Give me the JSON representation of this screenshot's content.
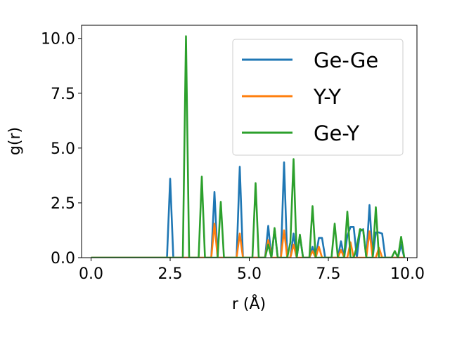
{
  "chart_data": {
    "type": "line",
    "xlabel": "r (Å)",
    "ylabel": "g(r)",
    "xlim": [
      -0.3,
      10.3
    ],
    "ylim": [
      0.0,
      10.6
    ],
    "xticks": [
      "0.0",
      "2.5",
      "5.0",
      "7.5",
      "10.0"
    ],
    "xtick_values": [
      0,
      2.5,
      5,
      7.5,
      10
    ],
    "yticks": [
      "0.0",
      "2.5",
      "5.0",
      "7.5",
      "10.0"
    ],
    "ytick_values": [
      0,
      2.5,
      5,
      7.5,
      10
    ],
    "grid": false,
    "legend": "top-right",
    "series": [
      {
        "name": "Ge-Ge",
        "color": "#1f77b4",
        "x": [
          0,
          2.4,
          2.5,
          2.6,
          3.8,
          3.9,
          4.0,
          4.6,
          4.7,
          4.8,
          5.5,
          5.6,
          5.7,
          5.8,
          5.9,
          6.0,
          6.1,
          6.2,
          6.3,
          6.4,
          6.5,
          6.6,
          6.7,
          6.8,
          6.9,
          7.0,
          7.1,
          7.2,
          7.3,
          7.4,
          7.5,
          7.6,
          7.7,
          7.8,
          7.9,
          8.0,
          8.1,
          8.2,
          8.3,
          8.4,
          8.5,
          8.6,
          8.7,
          8.8,
          8.9,
          9.0,
          9.1,
          9.2,
          9.3,
          9.4,
          9.5,
          9.6,
          9.7,
          9.8,
          9.9
        ],
        "y": [
          0,
          0,
          3.6,
          0,
          0,
          3.0,
          0,
          0,
          4.15,
          0,
          0,
          1.45,
          0,
          1.3,
          0,
          0,
          4.35,
          0,
          0,
          1.1,
          0,
          1.0,
          0,
          0,
          0,
          0.5,
          0,
          0.9,
          0.9,
          0,
          0,
          0,
          0,
          0,
          0.75,
          0,
          1.0,
          1.4,
          1.4,
          0,
          1.2,
          1.3,
          0,
          2.4,
          0,
          1.15,
          1.15,
          1.1,
          0,
          0,
          0,
          0,
          0,
          0.6,
          0
        ]
      },
      {
        "name": "Y-Y",
        "color": "#ff7f0e",
        "x": [
          0,
          3.8,
          3.9,
          4.0,
          4.6,
          4.7,
          4.8,
          5.5,
          5.6,
          5.7,
          6.0,
          6.1,
          6.2,
          6.3,
          6.4,
          6.5,
          6.9,
          7.0,
          7.1,
          7.2,
          7.3,
          7.8,
          7.9,
          8.0,
          8.1,
          8.2,
          8.3,
          8.7,
          8.8,
          8.9,
          9.0,
          9.1,
          9.2,
          9.9
        ],
        "y": [
          0,
          0,
          1.55,
          0,
          0,
          1.1,
          0,
          0,
          0.8,
          0,
          0,
          1.25,
          0,
          0,
          0.6,
          0,
          0,
          0.3,
          0,
          0.5,
          0,
          0,
          0.35,
          0,
          0,
          0.7,
          0,
          0,
          1.2,
          0,
          0,
          0.45,
          0,
          0
        ]
      },
      {
        "name": "Ge-Y",
        "color": "#2ca02c",
        "x": [
          0,
          2.9,
          3.0,
          3.1,
          3.4,
          3.5,
          3.6,
          4.0,
          4.1,
          4.2,
          5.1,
          5.2,
          5.3,
          5.5,
          5.6,
          5.7,
          5.8,
          5.9,
          6.2,
          6.3,
          6.4,
          6.5,
          6.6,
          6.7,
          6.9,
          7.0,
          7.1,
          7.6,
          7.7,
          7.8,
          8.0,
          8.1,
          8.2,
          8.3,
          8.4,
          8.5,
          8.6,
          8.7,
          8.8,
          8.9,
          9.0,
          9.1,
          9.5,
          9.6,
          9.7,
          9.8,
          9.9
        ],
        "y": [
          0,
          0,
          10.1,
          0,
          0,
          3.7,
          0,
          0,
          2.55,
          0,
          0,
          3.4,
          0,
          0,
          0.6,
          0,
          1.35,
          0,
          0,
          0.7,
          4.5,
          0,
          1.05,
          0,
          0,
          2.35,
          0,
          0,
          1.55,
          0,
          0,
          2.1,
          0,
          0,
          0.5,
          1.3,
          1.25,
          0,
          0,
          0,
          2.3,
          0,
          0,
          0.3,
          0,
          0.95,
          0
        ]
      }
    ]
  }
}
